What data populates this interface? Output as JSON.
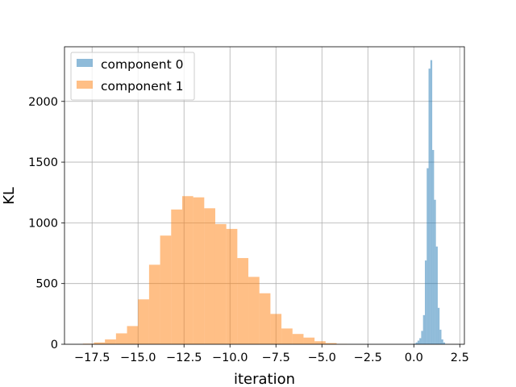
{
  "chart_data": {
    "type": "histogram",
    "title": "",
    "xlabel": "iteration",
    "ylabel": "KL",
    "xlim": [
      -19.0,
      2.75
    ],
    "ylim": [
      0,
      2450
    ],
    "xticks": [
      -17.5,
      -15.0,
      -12.5,
      -10.0,
      -7.5,
      -5.0,
      -2.5,
      0.0,
      2.5
    ],
    "xtick_labels": [
      "−17.5",
      "−15.0",
      "−12.5",
      "−10.0",
      "−7.5",
      "−5.0",
      "−2.5",
      "0.0",
      "2.5"
    ],
    "yticks": [
      0,
      500,
      1000,
      1500,
      2000
    ],
    "ytick_labels": [
      "0",
      "500",
      "1000",
      "1500",
      "2000"
    ],
    "grid": true,
    "legend_position": "upper-left",
    "series": [
      {
        "name": "component 0",
        "color": "#1f77b4",
        "alpha": 0.5,
        "bin_edges": [
          0.0,
          0.1,
          0.2,
          0.3,
          0.4,
          0.5,
          0.6,
          0.7,
          0.8,
          0.9,
          1.0,
          1.1,
          1.2,
          1.3,
          1.4,
          1.5,
          1.6,
          1.7
        ],
        "counts": [
          5,
          15,
          30,
          50,
          110,
          240,
          690,
          1450,
          2270,
          2340,
          1600,
          1190,
          805,
          300,
          120,
          40,
          15
        ]
      },
      {
        "name": "component 1",
        "color": "#ff7f0e",
        "alpha": 0.5,
        "bin_edges": [
          -18.0,
          -17.4,
          -16.8,
          -16.2,
          -15.6,
          -15.0,
          -14.4,
          -13.8,
          -13.2,
          -12.6,
          -12.0,
          -11.4,
          -10.8,
          -10.2,
          -9.6,
          -9.0,
          -8.4,
          -7.8,
          -7.2,
          -6.6,
          -6.0,
          -5.4,
          -4.8,
          -4.2,
          -3.6
        ],
        "counts": [
          5,
          15,
          40,
          90,
          150,
          370,
          655,
          895,
          1110,
          1220,
          1210,
          1120,
          990,
          950,
          710,
          555,
          420,
          250,
          130,
          85,
          55,
          25,
          10,
          3
        ]
      }
    ]
  }
}
